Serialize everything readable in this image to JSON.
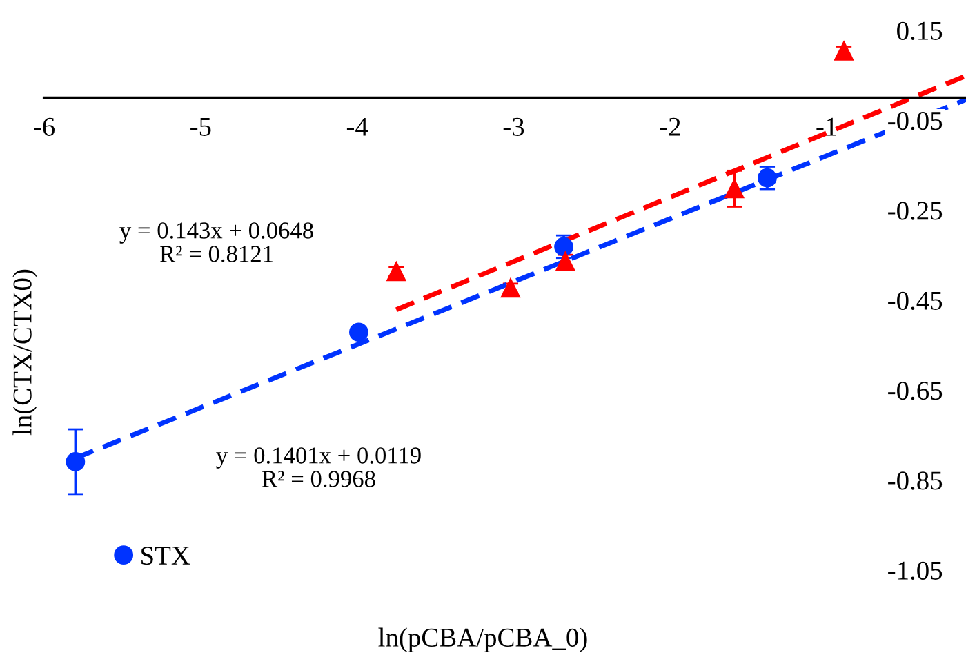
{
  "chart_data": {
    "type": "scatter",
    "xlabel": "ln(pCBA/pCBA_0)",
    "ylabel": "ln(CTX/CTX0)",
    "xlim": [
      -6,
      -0.11
    ],
    "xticks": [
      -6,
      -5,
      -4,
      -3,
      -2,
      -1
    ],
    "ylim": [
      -1.05,
      0.15
    ],
    "yticks": [
      0.15,
      -0.05,
      -0.25,
      -0.45,
      -0.65,
      -0.85,
      -1.05
    ],
    "grid": false,
    "legend": "bottom left",
    "tick_labels": "xy",
    "series": [
      {
        "name": "STX",
        "color": "#0033ff",
        "marker": "circle",
        "x": [
          -5.8,
          -3.99,
          -2.68,
          -1.38
        ],
        "values": [
          -0.809,
          -0.521,
          -0.331,
          -0.178
        ],
        "errors": [
          0.072,
          null,
          0.025,
          0.025
        ]
      },
      {
        "color": "#ff0000",
        "marker": "triangle",
        "x": [
          -3.75,
          -3.02,
          -2.67,
          -1.59,
          -0.89
        ],
        "values": [
          -0.386,
          -0.423,
          -0.364,
          -0.202,
          0.104
        ],
        "errors": [
          0.01,
          0.01,
          0.015,
          0.04,
          0.01
        ]
      },
      {
        "type": "line",
        "color": "#0033ff",
        "line_style": "dashed",
        "x": [
          -5.8,
          -0.11
        ],
        "values": [
          -0.801,
          -0.004
        ]
      },
      {
        "type": "line",
        "color": "#ff0000",
        "line_style": "dashed",
        "x": [
          -3.75,
          -0.11
        ],
        "values": [
          -0.471,
          0.049
        ]
      }
    ],
    "annotations": [
      "y = 0.143x + 0.0648\nR² = 0.8121",
      "y = 0.1401x + 0.0119\nR² = 0.9968"
    ]
  }
}
